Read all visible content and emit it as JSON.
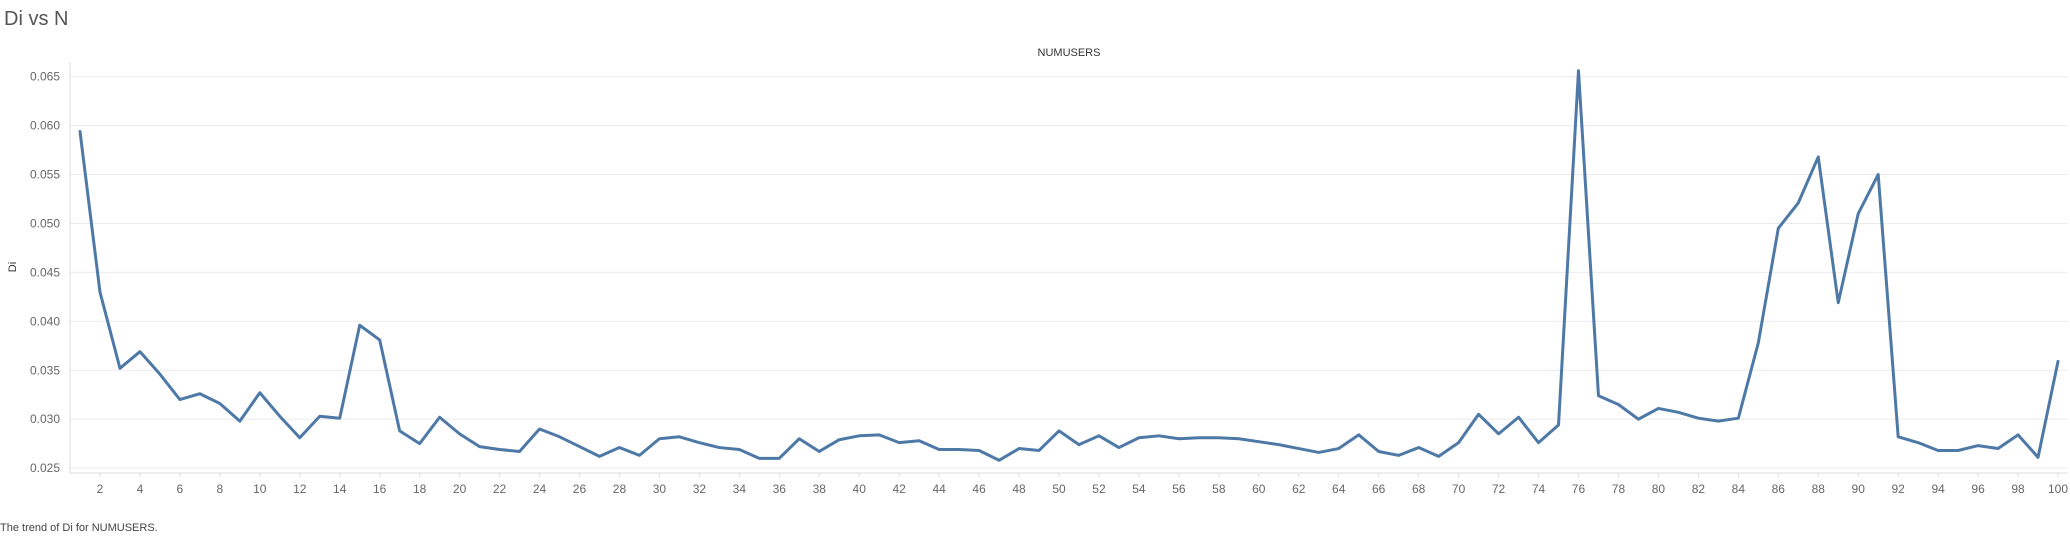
{
  "page": {
    "title": "Di vs N",
    "caption": "The trend of Di for NUMUSERS."
  },
  "colors": {
    "line": "#4e79a7",
    "grid": "#ebebeb",
    "tick_text": "#666666",
    "title_text": "#333333"
  },
  "chart_data": {
    "type": "line",
    "title": "NUMUSERS",
    "xlabel": "",
    "ylabel": "Di",
    "xlim": [
      0.5,
      100.5
    ],
    "ylim": [
      0.0245,
      0.0665
    ],
    "grid": true,
    "yticks": [
      "0.025",
      "0.030",
      "0.035",
      "0.040",
      "0.045",
      "0.050",
      "0.055",
      "0.060",
      "0.065"
    ],
    "xticks": [
      "2",
      "4",
      "6",
      "8",
      "10",
      "12",
      "14",
      "16",
      "18",
      "20",
      "22",
      "24",
      "26",
      "28",
      "30",
      "32",
      "34",
      "36",
      "38",
      "40",
      "42",
      "44",
      "46",
      "48",
      "50",
      "52",
      "54",
      "56",
      "58",
      "60",
      "62",
      "64",
      "66",
      "68",
      "70",
      "72",
      "74",
      "76",
      "78",
      "80",
      "82",
      "84",
      "86",
      "88",
      "90",
      "92",
      "94",
      "96",
      "98",
      "100"
    ],
    "x": [
      1,
      2,
      3,
      4,
      5,
      6,
      7,
      8,
      9,
      10,
      11,
      12,
      13,
      14,
      15,
      16,
      17,
      18,
      19,
      20,
      21,
      22,
      23,
      24,
      25,
      26,
      27,
      28,
      29,
      30,
      31,
      32,
      33,
      34,
      35,
      36,
      37,
      38,
      39,
      40,
      41,
      42,
      43,
      44,
      45,
      46,
      47,
      48,
      49,
      50,
      51,
      52,
      53,
      54,
      55,
      56,
      57,
      58,
      59,
      60,
      61,
      62,
      63,
      64,
      65,
      66,
      67,
      68,
      69,
      70,
      71,
      72,
      73,
      74,
      75,
      76,
      77,
      78,
      79,
      80,
      81,
      82,
      83,
      84,
      85,
      86,
      87,
      88,
      89,
      90,
      91,
      92,
      93,
      94,
      95,
      96,
      97,
      98,
      99,
      100
    ],
    "series": [
      {
        "values": [
          0.0594,
          0.043,
          0.0352,
          0.0369,
          0.0346,
          0.032,
          0.0326,
          0.0316,
          0.0298,
          0.0327,
          0.0303,
          0.0281,
          0.0303,
          0.0301,
          0.0396,
          0.0381,
          0.0288,
          0.0275,
          0.0302,
          0.0285,
          0.0272,
          0.0269,
          0.0267,
          0.029,
          0.0282,
          0.0272,
          0.0262,
          0.0271,
          0.0263,
          0.028,
          0.0282,
          0.0276,
          0.0271,
          0.0269,
          0.026,
          0.026,
          0.028,
          0.0267,
          0.0279,
          0.0283,
          0.0284,
          0.0276,
          0.0278,
          0.0269,
          0.0269,
          0.0268,
          0.0258,
          0.027,
          0.0268,
          0.0288,
          0.0274,
          0.0283,
          0.0271,
          0.0281,
          0.0283,
          0.028,
          0.0281,
          0.0281,
          0.028,
          0.0277,
          0.0274,
          0.027,
          0.0266,
          0.027,
          0.0284,
          0.0267,
          0.0263,
          0.0271,
          0.0262,
          0.0276,
          0.0305,
          0.0285,
          0.0302,
          0.0276,
          0.0294,
          0.0656,
          0.0324,
          0.0315,
          0.03,
          0.0311,
          0.0307,
          0.0301,
          0.0298,
          0.0301,
          0.0378,
          0.0495,
          0.0521,
          0.0568,
          0.0419,
          0.051,
          0.055,
          0.0282,
          0.0276,
          0.0268,
          0.0268,
          0.0273,
          0.027,
          0.0284,
          0.0261,
          0.0359
        ]
      }
    ]
  }
}
